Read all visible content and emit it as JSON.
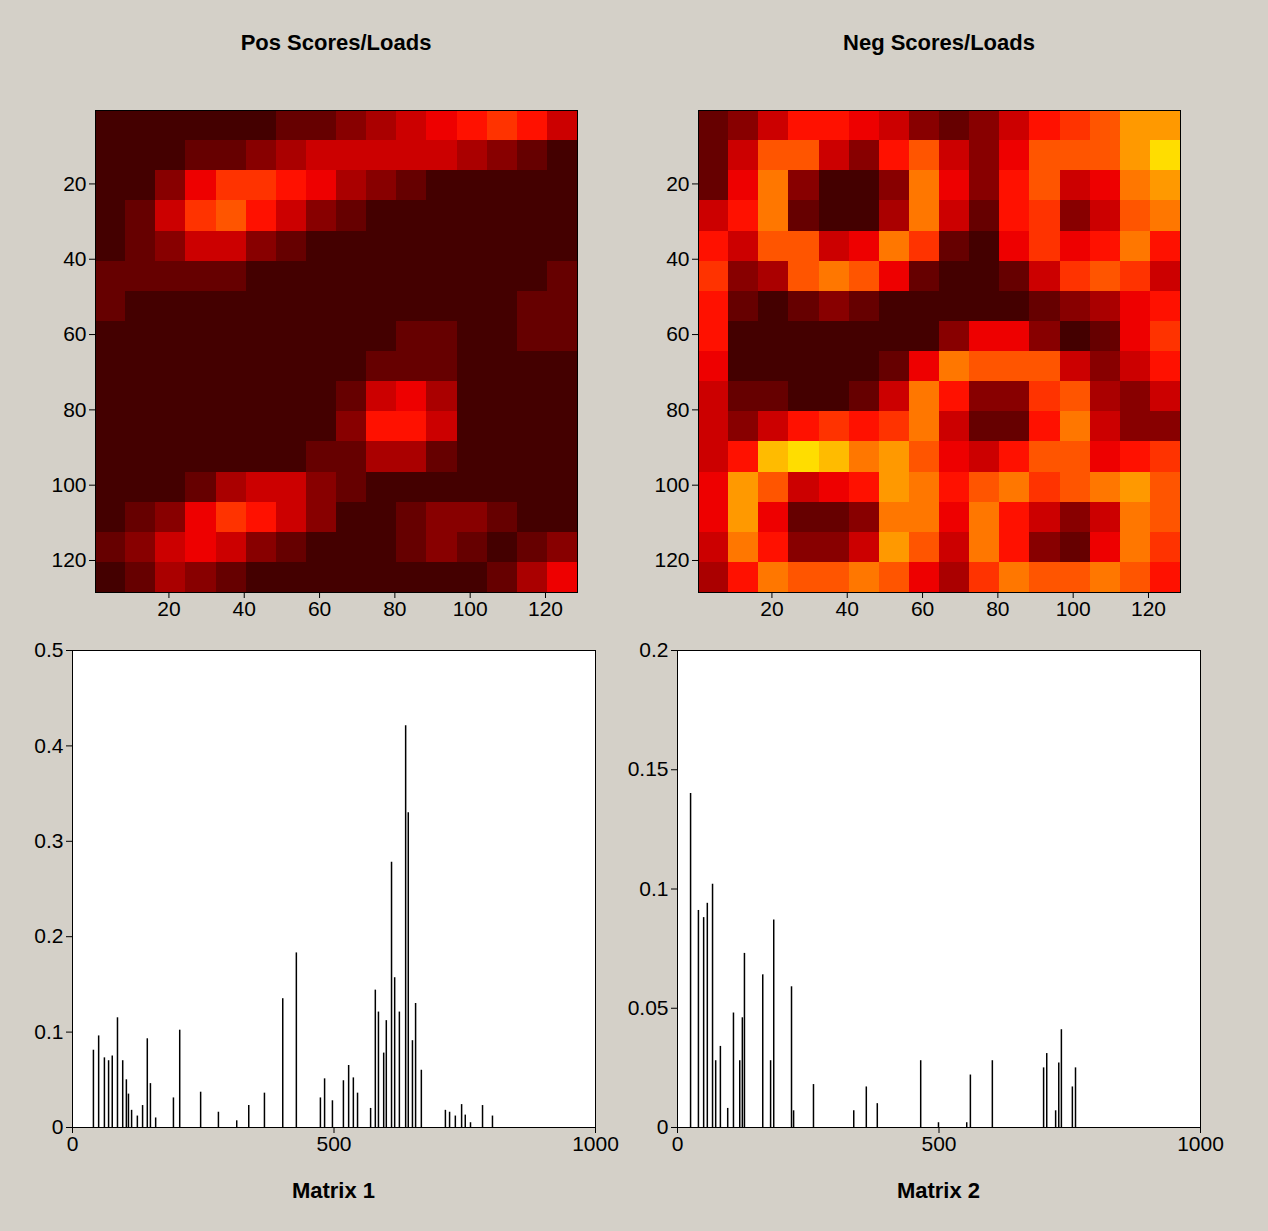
{
  "chart_data": [
    {
      "type": "heatmap",
      "title": "Pos Scores/Loads",
      "x_edges": [
        0.5,
        8.5,
        16.5,
        24.5,
        32.5,
        40.5,
        48.5,
        56.5,
        64.5,
        72.5,
        80.5,
        88.5,
        96.5,
        104.5,
        112.5,
        120.5,
        128.5
      ],
      "y_edges": [
        0.5,
        8.5,
        16.5,
        24.5,
        32.5,
        40.5,
        48.5,
        56.5,
        64.5,
        72.5,
        80.5,
        88.5,
        96.5,
        104.5,
        112.5,
        120.5,
        128.5
      ],
      "cells": [
        [
          0.1,
          0.1,
          0.1,
          0.1,
          0.1,
          0.1,
          0.15,
          0.15,
          0.2,
          0.25,
          0.3,
          0.35,
          0.4,
          0.45,
          0.4,
          0.3
        ],
        [
          0.1,
          0.1,
          0.1,
          0.15,
          0.15,
          0.2,
          0.25,
          0.3,
          0.3,
          0.3,
          0.3,
          0.3,
          0.25,
          0.2,
          0.15,
          0.1
        ],
        [
          0.1,
          0.1,
          0.2,
          0.35,
          0.45,
          0.45,
          0.4,
          0.35,
          0.25,
          0.2,
          0.15,
          0.1,
          0.1,
          0.1,
          0.1,
          0.1
        ],
        [
          0.1,
          0.15,
          0.3,
          0.45,
          0.5,
          0.4,
          0.3,
          0.2,
          0.15,
          0.1,
          0.1,
          0.1,
          0.1,
          0.1,
          0.1,
          0.1
        ],
        [
          0.1,
          0.15,
          0.2,
          0.3,
          0.3,
          0.2,
          0.15,
          0.1,
          0.1,
          0.1,
          0.1,
          0.1,
          0.1,
          0.1,
          0.1,
          0.1
        ],
        [
          0.15,
          0.15,
          0.15,
          0.15,
          0.15,
          0.1,
          0.1,
          0.1,
          0.1,
          0.1,
          0.1,
          0.1,
          0.1,
          0.1,
          0.1,
          0.15
        ],
        [
          0.15,
          0.1,
          0.1,
          0.1,
          0.1,
          0.1,
          0.1,
          0.1,
          0.1,
          0.1,
          0.1,
          0.1,
          0.1,
          0.1,
          0.15,
          0.15
        ],
        [
          0.1,
          0.1,
          0.1,
          0.1,
          0.1,
          0.1,
          0.1,
          0.1,
          0.1,
          0.1,
          0.15,
          0.15,
          0.1,
          0.1,
          0.15,
          0.15
        ],
        [
          0.1,
          0.1,
          0.1,
          0.1,
          0.1,
          0.1,
          0.1,
          0.1,
          0.1,
          0.15,
          0.15,
          0.15,
          0.1,
          0.1,
          0.1,
          0.1
        ],
        [
          0.1,
          0.1,
          0.1,
          0.1,
          0.1,
          0.1,
          0.1,
          0.1,
          0.15,
          0.3,
          0.35,
          0.25,
          0.1,
          0.1,
          0.1,
          0.1
        ],
        [
          0.1,
          0.1,
          0.1,
          0.1,
          0.1,
          0.1,
          0.1,
          0.1,
          0.2,
          0.4,
          0.4,
          0.3,
          0.1,
          0.1,
          0.1,
          0.1
        ],
        [
          0.1,
          0.1,
          0.1,
          0.1,
          0.1,
          0.1,
          0.1,
          0.15,
          0.15,
          0.25,
          0.25,
          0.15,
          0.1,
          0.1,
          0.1,
          0.1
        ],
        [
          0.1,
          0.1,
          0.1,
          0.15,
          0.25,
          0.3,
          0.3,
          0.2,
          0.15,
          0.1,
          0.1,
          0.1,
          0.1,
          0.1,
          0.1,
          0.1
        ],
        [
          0.1,
          0.15,
          0.2,
          0.35,
          0.45,
          0.4,
          0.3,
          0.2,
          0.1,
          0.1,
          0.15,
          0.2,
          0.2,
          0.15,
          0.1,
          0.1
        ],
        [
          0.15,
          0.2,
          0.3,
          0.35,
          0.3,
          0.2,
          0.15,
          0.1,
          0.1,
          0.1,
          0.15,
          0.2,
          0.15,
          0.1,
          0.15,
          0.2
        ],
        [
          0.1,
          0.15,
          0.25,
          0.2,
          0.15,
          0.1,
          0.1,
          0.1,
          0.1,
          0.1,
          0.1,
          0.1,
          0.1,
          0.15,
          0.25,
          0.35
        ]
      ],
      "clim": [
        0,
        1
      ],
      "xlim": [
        0.5,
        128.5
      ],
      "ylim": [
        0.5,
        128.5
      ],
      "xticks": [
        20,
        40,
        60,
        80,
        100,
        120
      ],
      "yticks": [
        20,
        40,
        60,
        80,
        100,
        120
      ]
    },
    {
      "type": "heatmap",
      "title": "Neg Scores/Loads",
      "x_edges": [
        0.5,
        8.5,
        16.5,
        24.5,
        32.5,
        40.5,
        48.5,
        56.5,
        64.5,
        72.5,
        80.5,
        88.5,
        96.5,
        104.5,
        112.5,
        120.5,
        128.5
      ],
      "y_edges": [
        0.5,
        8.5,
        16.5,
        24.5,
        32.5,
        40.5,
        48.5,
        56.5,
        64.5,
        72.5,
        80.5,
        88.5,
        96.5,
        104.5,
        112.5,
        120.5,
        128.5
      ],
      "cells": [
        [
          0.15,
          0.2,
          0.3,
          0.4,
          0.4,
          0.35,
          0.3,
          0.2,
          0.15,
          0.2,
          0.3,
          0.4,
          0.45,
          0.5,
          0.6,
          0.6
        ],
        [
          0.15,
          0.3,
          0.5,
          0.5,
          0.3,
          0.2,
          0.4,
          0.5,
          0.3,
          0.2,
          0.35,
          0.5,
          0.5,
          0.5,
          0.6,
          0.7
        ],
        [
          0.15,
          0.35,
          0.55,
          0.2,
          0.1,
          0.1,
          0.2,
          0.55,
          0.35,
          0.2,
          0.4,
          0.5,
          0.3,
          0.35,
          0.55,
          0.6
        ],
        [
          0.3,
          0.4,
          0.55,
          0.15,
          0.1,
          0.1,
          0.25,
          0.55,
          0.3,
          0.15,
          0.4,
          0.45,
          0.2,
          0.3,
          0.5,
          0.55
        ],
        [
          0.4,
          0.3,
          0.5,
          0.5,
          0.3,
          0.35,
          0.55,
          0.45,
          0.15,
          0.1,
          0.35,
          0.45,
          0.35,
          0.4,
          0.55,
          0.4
        ],
        [
          0.45,
          0.2,
          0.25,
          0.5,
          0.55,
          0.5,
          0.35,
          0.15,
          0.1,
          0.1,
          0.15,
          0.3,
          0.45,
          0.5,
          0.45,
          0.3
        ],
        [
          0.4,
          0.15,
          0.1,
          0.15,
          0.2,
          0.15,
          0.1,
          0.1,
          0.1,
          0.1,
          0.1,
          0.15,
          0.2,
          0.25,
          0.35,
          0.4
        ],
        [
          0.4,
          0.1,
          0.1,
          0.1,
          0.1,
          0.1,
          0.1,
          0.1,
          0.2,
          0.35,
          0.35,
          0.2,
          0.1,
          0.15,
          0.35,
          0.45
        ],
        [
          0.35,
          0.1,
          0.1,
          0.1,
          0.1,
          0.1,
          0.15,
          0.35,
          0.55,
          0.5,
          0.5,
          0.5,
          0.3,
          0.2,
          0.3,
          0.4
        ],
        [
          0.3,
          0.15,
          0.15,
          0.1,
          0.1,
          0.15,
          0.3,
          0.55,
          0.4,
          0.2,
          0.2,
          0.45,
          0.5,
          0.25,
          0.2,
          0.3
        ],
        [
          0.3,
          0.2,
          0.3,
          0.4,
          0.45,
          0.4,
          0.45,
          0.55,
          0.3,
          0.15,
          0.15,
          0.4,
          0.55,
          0.3,
          0.2,
          0.2
        ],
        [
          0.3,
          0.4,
          0.65,
          0.7,
          0.65,
          0.55,
          0.6,
          0.5,
          0.35,
          0.3,
          0.4,
          0.5,
          0.5,
          0.35,
          0.4,
          0.45
        ],
        [
          0.35,
          0.6,
          0.5,
          0.3,
          0.35,
          0.4,
          0.6,
          0.55,
          0.4,
          0.5,
          0.55,
          0.45,
          0.5,
          0.55,
          0.6,
          0.5
        ],
        [
          0.35,
          0.6,
          0.35,
          0.15,
          0.15,
          0.2,
          0.55,
          0.55,
          0.35,
          0.55,
          0.4,
          0.3,
          0.2,
          0.3,
          0.55,
          0.5
        ],
        [
          0.3,
          0.55,
          0.4,
          0.2,
          0.2,
          0.3,
          0.6,
          0.5,
          0.3,
          0.55,
          0.4,
          0.2,
          0.15,
          0.35,
          0.55,
          0.45
        ],
        [
          0.25,
          0.4,
          0.55,
          0.5,
          0.5,
          0.55,
          0.5,
          0.35,
          0.25,
          0.45,
          0.55,
          0.5,
          0.5,
          0.55,
          0.5,
          0.4
        ]
      ],
      "clim": [
        0,
        1
      ],
      "xlim": [
        0.5,
        128.5
      ],
      "ylim": [
        0.5,
        128.5
      ],
      "xticks": [
        20,
        40,
        60,
        80,
        100,
        120
      ],
      "yticks": [
        20,
        40,
        60,
        80,
        100,
        120
      ]
    },
    {
      "type": "bar",
      "xlabel": "Matrix 1",
      "color": "#000000",
      "x": [
        40,
        50,
        61,
        69,
        76,
        86,
        96,
        103,
        107,
        113,
        124,
        134,
        143,
        149,
        159,
        193,
        205,
        245,
        279,
        314,
        337,
        367,
        402,
        428,
        474,
        482,
        497,
        518,
        528,
        537,
        545,
        570,
        579,
        585,
        595,
        600,
        610,
        616,
        625,
        637,
        642,
        650,
        656,
        667,
        713,
        721,
        732,
        744,
        751,
        761,
        784,
        803
      ],
      "values": [
        0.081,
        0.096,
        0.073,
        0.07,
        0.075,
        0.115,
        0.07,
        0.05,
        0.035,
        0.018,
        0.012,
        0.023,
        0.093,
        0.046,
        0.01,
        0.031,
        0.102,
        0.037,
        0.016,
        0.007,
        0.023,
        0.036,
        0.135,
        0.183,
        0.031,
        0.051,
        0.028,
        0.049,
        0.065,
        0.052,
        0.036,
        0.02,
        0.144,
        0.121,
        0.078,
        0.112,
        0.278,
        0.157,
        0.121,
        0.421,
        0.33,
        0.091,
        0.13,
        0.06,
        0.018,
        0.016,
        0.012,
        0.024,
        0.013,
        0.005,
        0.023,
        0.012
      ],
      "xlim": [
        0,
        1000
      ],
      "ylim": [
        0,
        0.5
      ],
      "xticks": [
        0,
        500,
        1000
      ],
      "yticks": [
        0,
        0.1,
        0.2,
        0.3,
        0.4,
        0.5
      ]
    },
    {
      "type": "bar",
      "xlabel": "Matrix 2",
      "color": "#000000",
      "x": [
        25,
        40,
        50,
        57,
        67,
        73,
        82,
        96,
        107,
        119,
        124,
        128,
        163,
        178,
        184,
        218,
        222,
        260,
        337,
        361,
        382,
        465,
        499,
        553,
        560,
        602,
        700,
        706,
        723,
        729,
        734,
        755,
        761
      ],
      "values": [
        0.14,
        0.091,
        0.088,
        0.094,
        0.102,
        0.028,
        0.034,
        0.008,
        0.048,
        0.028,
        0.046,
        0.073,
        0.064,
        0.028,
        0.087,
        0.059,
        0.007,
        0.018,
        0.007,
        0.017,
        0.01,
        0.028,
        0.002,
        0.002,
        0.022,
        0.028,
        0.025,
        0.031,
        0.007,
        0.027,
        0.041,
        0.017,
        0.025
      ],
      "xlim": [
        0,
        1000
      ],
      "ylim": [
        0,
        0.2
      ],
      "xticks": [
        0,
        500,
        1000
      ],
      "yticks": [
        0,
        0.05,
        0.1,
        0.15,
        0.2
      ]
    }
  ]
}
